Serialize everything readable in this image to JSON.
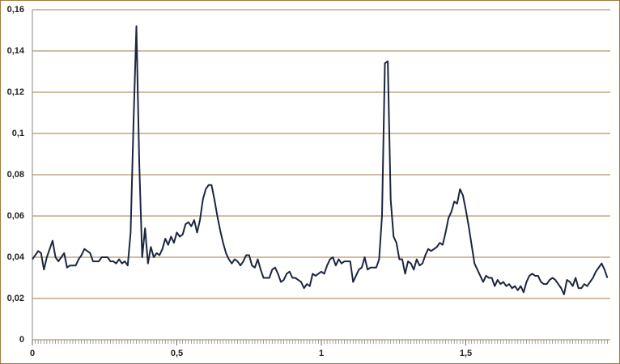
{
  "chart_data": {
    "type": "line",
    "x": [
      0,
      0.01,
      0.02,
      0.03,
      0.04,
      0.05,
      0.06,
      0.07,
      0.08,
      0.09,
      0.1,
      0.11,
      0.12,
      0.13,
      0.14,
      0.15,
      0.16,
      0.17,
      0.18,
      0.19,
      0.2,
      0.21,
      0.22,
      0.23,
      0.24,
      0.25,
      0.26,
      0.27,
      0.28,
      0.29,
      0.3,
      0.31,
      0.32,
      0.33,
      0.34,
      0.35,
      0.36,
      0.37,
      0.38,
      0.39,
      0.4,
      0.41,
      0.42,
      0.43,
      0.44,
      0.45,
      0.46,
      0.47,
      0.48,
      0.49,
      0.5,
      0.51,
      0.52,
      0.53,
      0.54,
      0.55,
      0.56,
      0.57,
      0.58,
      0.59,
      0.6,
      0.61,
      0.62,
      0.63,
      0.64,
      0.65,
      0.66,
      0.67,
      0.68,
      0.69,
      0.7,
      0.71,
      0.72,
      0.73,
      0.74,
      0.75,
      0.76,
      0.77,
      0.78,
      0.79,
      0.8,
      0.81,
      0.82,
      0.83,
      0.84,
      0.85,
      0.86,
      0.87,
      0.88,
      0.89,
      0.9,
      0.91,
      0.92,
      0.93,
      0.94,
      0.95,
      0.96,
      0.97,
      0.98,
      0.99,
      1,
      1.01,
      1.02,
      1.03,
      1.04,
      1.05,
      1.06,
      1.07,
      1.08,
      1.09,
      1.1,
      1.11,
      1.12,
      1.13,
      1.14,
      1.15,
      1.16,
      1.17,
      1.18,
      1.19,
      1.2,
      1.21,
      1.22,
      1.23,
      1.24,
      1.25,
      1.26,
      1.27,
      1.28,
      1.29,
      1.3,
      1.31,
      1.32,
      1.33,
      1.34,
      1.35,
      1.36,
      1.37,
      1.38,
      1.39,
      1.4,
      1.41,
      1.42,
      1.43,
      1.44,
      1.45,
      1.46,
      1.47,
      1.48,
      1.49,
      1.5,
      1.51,
      1.52,
      1.53,
      1.54,
      1.55,
      1.56,
      1.57,
      1.58,
      1.59,
      1.6,
      1.61,
      1.62,
      1.63,
      1.64,
      1.65,
      1.66,
      1.67,
      1.68,
      1.69,
      1.7,
      1.71,
      1.72,
      1.73,
      1.74,
      1.75,
      1.76,
      1.77,
      1.78,
      1.79,
      1.8,
      1.81,
      1.82,
      1.83,
      1.84,
      1.85,
      1.86,
      1.87,
      1.88,
      1.89,
      1.9,
      1.91,
      1.92,
      1.93,
      1.94,
      1.95,
      1.96,
      1.97,
      1.98,
      1.99
    ],
    "series": [
      {
        "color": "#1c2640",
        "values": [
          0.039,
          0.041,
          0.043,
          0.042,
          0.034,
          0.04,
          0.044,
          0.048,
          0.04,
          0.038,
          0.04,
          0.042,
          0.035,
          0.036,
          0.036,
          0.036,
          0.039,
          0.041,
          0.044,
          0.043,
          0.042,
          0.038,
          0.038,
          0.038,
          0.04,
          0.04,
          0.04,
          0.038,
          0.038,
          0.037,
          0.039,
          0.037,
          0.038,
          0.036,
          0.052,
          0.105,
          0.152,
          0.085,
          0.04,
          0.054,
          0.037,
          0.045,
          0.04,
          0.042,
          0.041,
          0.044,
          0.049,
          0.046,
          0.05,
          0.047,
          0.052,
          0.05,
          0.051,
          0.056,
          0.057,
          0.055,
          0.058,
          0.052,
          0.058,
          0.068,
          0.073,
          0.075,
          0.075,
          0.068,
          0.06,
          0.053,
          0.047,
          0.042,
          0.039,
          0.037,
          0.039,
          0.038,
          0.036,
          0.038,
          0.041,
          0.041,
          0.036,
          0.035,
          0.039,
          0.034,
          0.03,
          0.03,
          0.03,
          0.034,
          0.035,
          0.032,
          0.028,
          0.029,
          0.032,
          0.033,
          0.03,
          0.03,
          0.029,
          0.028,
          0.025,
          0.027,
          0.026,
          0.032,
          0.031,
          0.032,
          0.033,
          0.032,
          0.036,
          0.039,
          0.04,
          0.036,
          0.039,
          0.037,
          0.038,
          0.038,
          0.038,
          0.028,
          0.031,
          0.034,
          0.035,
          0.04,
          0.034,
          0.035,
          0.035,
          0.035,
          0.039,
          0.06,
          0.134,
          0.135,
          0.068,
          0.05,
          0.047,
          0.039,
          0.039,
          0.032,
          0.038,
          0.037,
          0.034,
          0.039,
          0.036,
          0.037,
          0.041,
          0.044,
          0.043,
          0.044,
          0.045,
          0.047,
          0.046,
          0.052,
          0.059,
          0.062,
          0.067,
          0.066,
          0.073,
          0.07,
          0.063,
          0.055,
          0.046,
          0.037,
          0.034,
          0.031,
          0.028,
          0.031,
          0.03,
          0.03,
          0.026,
          0.029,
          0.027,
          0.028,
          0.026,
          0.027,
          0.025,
          0.026,
          0.024,
          0.026,
          0.023,
          0.028,
          0.031,
          0.032,
          0.031,
          0.031,
          0.028,
          0.027,
          0.027,
          0.029,
          0.03,
          0.029,
          0.027,
          0.025,
          0.022,
          0.029,
          0.028,
          0.026,
          0.03,
          0.025,
          0.025,
          0.027,
          0.026,
          0.028,
          0.03,
          0.033,
          0.035,
          0.037,
          0.034,
          0.03
        ]
      }
    ],
    "xlim": [
      0,
      2
    ],
    "xticks": [
      0,
      {
        "value": 0.5,
        "label": "0,5"
      },
      1,
      {
        "value": 1.5,
        "label": "1,5"
      }
    ],
    "ylim": [
      0,
      0.16
    ],
    "yticks": [
      0,
      {
        "value": 0.02,
        "label": "0,02"
      },
      {
        "value": 0.04,
        "label": "0,04"
      },
      {
        "value": 0.06,
        "label": "0,06"
      },
      {
        "value": 0.08,
        "label": "0,08"
      },
      {
        "value": 0.1,
        "label": "0,1"
      },
      {
        "value": 0.12,
        "label": "0,12"
      },
      {
        "value": 0.14,
        "label": "0,14"
      },
      {
        "value": 0.16,
        "label": "0,16"
      }
    ],
    "grid": true
  }
}
